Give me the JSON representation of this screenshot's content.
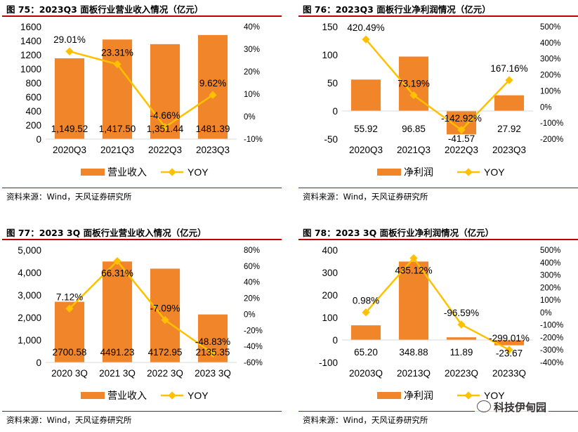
{
  "panels": [
    {
      "title": "图 75：2023Q3 面板行业营业收入情况（亿元）",
      "source": "资料来源：Wind，天风证券研究所"
    },
    {
      "title": "图 76：2023Q3 面板行业净利润情况（亿元）",
      "source": "资料来源：Wind，天风证券研究所"
    },
    {
      "title": "图 77：2023 3Q 面板行业营业收入情况（亿元）",
      "source": "资料来源：Wind，天风证券研究所"
    },
    {
      "title": "图 78：2023 3Q 面板行业净利润情况（亿元）",
      "source": "资料来源：Wind，天风证券研究所"
    }
  ],
  "watermark": {
    "text": "科技伊甸园",
    "icon": "wechat-icon"
  },
  "colors": {
    "bar": "#f0852a",
    "line": "#ffc000",
    "rule": "#c00000",
    "axis": "#d9d9d9"
  },
  "chart_data": [
    {
      "type": "bar",
      "title": "2023Q3 面板行业营业收入情况（亿元）",
      "categories": [
        "2020Q3",
        "2021Q3",
        "2022Q3",
        "2023Q3"
      ],
      "series": [
        {
          "name": "营业收入",
          "type": "bar",
          "axis": "left",
          "values": [
            1149.52,
            1417.5,
            1351.44,
            1481.39
          ],
          "labels": [
            "1,149.52",
            "1,417.50",
            "1,351.44",
            "1481.39"
          ]
        },
        {
          "name": "YOY",
          "type": "line",
          "axis": "right",
          "values": [
            29.01,
            23.31,
            -4.66,
            9.62
          ],
          "labels": [
            "29.01%",
            "23.31%",
            "-4.66%",
            "9.62%"
          ]
        }
      ],
      "ylim": [
        0,
        1600
      ],
      "yticks": [
        0,
        200,
        400,
        600,
        800,
        1000,
        1200,
        1400,
        1600
      ],
      "ytick_labels": [
        "0",
        "200",
        "400",
        "600",
        "800",
        "1000",
        "1200",
        "1400",
        "1600"
      ],
      "y2lim": [
        -10,
        40
      ],
      "y2ticks": [
        -10,
        0,
        10,
        20,
        30,
        40
      ],
      "y2tick_labels": [
        "-10%",
        "0%",
        "10%",
        "20%",
        "30%",
        "40%"
      ],
      "legend": [
        "营业收入",
        "YOY"
      ]
    },
    {
      "type": "bar",
      "title": "2023Q3 面板行业净利润情况（亿元）",
      "categories": [
        "2020Q3",
        "2021Q3",
        "2022Q3",
        "2023Q3"
      ],
      "series": [
        {
          "name": "净利润",
          "type": "bar",
          "axis": "left",
          "values": [
            55.92,
            96.85,
            -41.57,
            27.92
          ],
          "labels": [
            "55.92",
            "96.85",
            "-41.57",
            "27.92"
          ]
        },
        {
          "name": "YOY",
          "type": "line",
          "axis": "right",
          "values": [
            420.49,
            73.19,
            -142.92,
            167.16
          ],
          "labels": [
            "420.49%",
            "73.19%",
            "-142.92%",
            "167.16%"
          ]
        }
      ],
      "ylim": [
        -50,
        150
      ],
      "yticks": [
        -50,
        0,
        50,
        100,
        150
      ],
      "ytick_labels": [
        "-50",
        "0",
        "50",
        "100",
        "150"
      ],
      "y2lim": [
        -200,
        500
      ],
      "y2ticks": [
        -200,
        -100,
        0,
        100,
        200,
        300,
        400,
        500
      ],
      "y2tick_labels": [
        "-200%",
        "-100%",
        "0%",
        "100%",
        "200%",
        "300%",
        "400%",
        "500%"
      ],
      "legend": [
        "净利润",
        "YOY"
      ]
    },
    {
      "type": "bar",
      "title": "2023 3Q 面板行业营业收入情况（亿元）",
      "categories": [
        "2020 3Q",
        "2021 3Q",
        "2022 3Q",
        "2023 3Q"
      ],
      "series": [
        {
          "name": "营业收入",
          "type": "bar",
          "axis": "left",
          "values": [
            2700.58,
            4491.23,
            4172.95,
            2135.35
          ],
          "labels": [
            "2700.58",
            "4491.23",
            "4172.95",
            "2135.35"
          ]
        },
        {
          "name": "YOY",
          "type": "line",
          "axis": "right",
          "values": [
            7.12,
            66.31,
            -7.09,
            -48.83
          ],
          "labels": [
            "7.12%",
            "66.31%",
            "-7.09%",
            "-48.83%"
          ]
        }
      ],
      "ylim": [
        0,
        5000
      ],
      "yticks": [
        0,
        1000,
        2000,
        3000,
        4000,
        5000
      ],
      "ytick_labels": [
        "0",
        "1,000",
        "2,000",
        "3,000",
        "4,000",
        "5,000"
      ],
      "y2lim": [
        -60,
        80
      ],
      "y2ticks": [
        -60,
        -40,
        -20,
        0,
        20,
        40,
        60,
        80
      ],
      "y2tick_labels": [
        "-60%",
        "-40%",
        "-20%",
        "0%",
        "20%",
        "40%",
        "60%",
        "80%"
      ],
      "legend": [
        "营业收入",
        "YOY"
      ]
    },
    {
      "type": "bar",
      "title": "2023 3Q 面板行业净利润情况（亿元）",
      "categories": [
        "20203Q",
        "20213Q",
        "20223Q",
        "20233Q"
      ],
      "series": [
        {
          "name": "净利润",
          "type": "bar",
          "axis": "left",
          "values": [
            65.2,
            348.88,
            11.89,
            -23.67
          ],
          "labels": [
            "65.20",
            "348.88",
            "11.89",
            "-23.67"
          ]
        },
        {
          "name": "YOY",
          "type": "line",
          "axis": "right",
          "values": [
            0.98,
            435.12,
            -96.59,
            -299.01
          ],
          "labels": [
            "0.98%",
            "435.12%",
            "-96.59%",
            "-299.01%"
          ]
        }
      ],
      "ylim": [
        -100,
        400
      ],
      "yticks": [
        -100,
        0,
        100,
        200,
        300,
        400
      ],
      "ytick_labels": [
        "-100",
        "0",
        "100",
        "200",
        "300",
        "400"
      ],
      "y2lim": [
        -400,
        500
      ],
      "y2ticks": [
        -400,
        -300,
        -200,
        -100,
        0,
        100,
        200,
        300,
        400,
        500
      ],
      "y2tick_labels": [
        "-400%",
        "-300%",
        "-200%",
        "-100%",
        "0%",
        "100%",
        "200%",
        "300%",
        "400%",
        "500%"
      ],
      "legend": [
        "净利润",
        "YOY"
      ]
    }
  ]
}
